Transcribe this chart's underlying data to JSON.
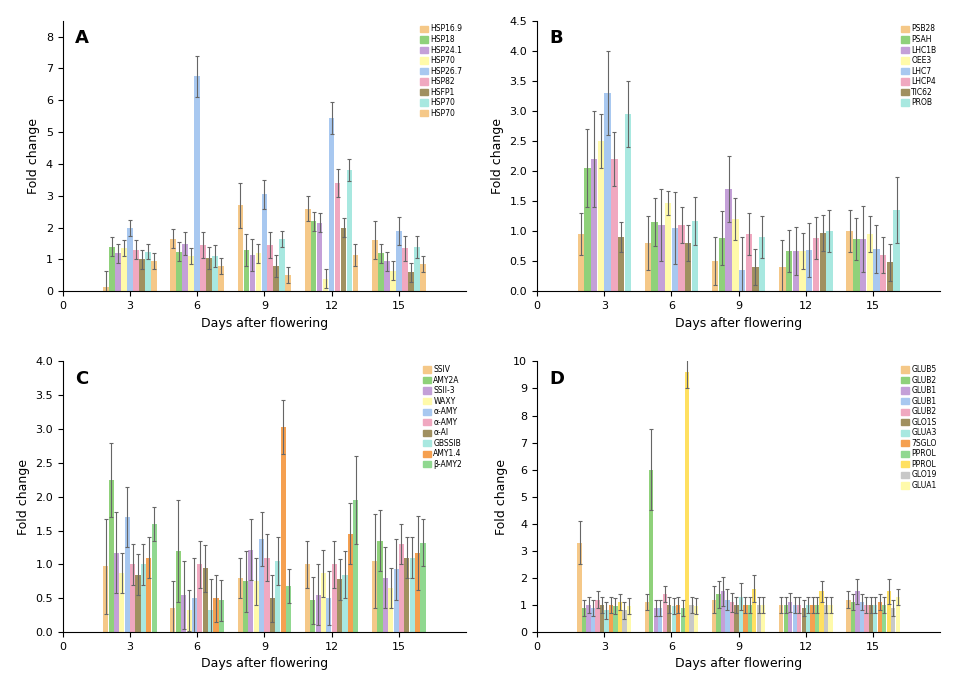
{
  "x_positions": [
    3,
    6,
    9,
    12,
    15
  ],
  "subplot_A": {
    "title": "A",
    "ylabel": "Fold change",
    "xlabel": "Days after flowering",
    "ylim": [
      0,
      8.5
    ],
    "yticks": [
      0,
      1,
      2,
      3,
      4,
      5,
      6,
      7,
      8
    ],
    "legend_labels": [
      "HSP16.9",
      "HSP18",
      "HSP24.1",
      "HSP70",
      "HSP26.7",
      "HSP82",
      "HSFP1",
      "HSP70",
      "HSP70"
    ],
    "colors": [
      "#F5C888",
      "#8FD17A",
      "#C4A0D8",
      "#FFFAAA",
      "#A8C8F0",
      "#F0A8C0",
      "#A09060",
      "#A8E8E0",
      "#F5C888"
    ],
    "values": [
      [
        0.15,
        1.4,
        1.2,
        1.35,
        2.0,
        1.3,
        1.0,
        1.25,
        0.95
      ],
      [
        1.65,
        1.25,
        1.5,
        1.1,
        6.75,
        1.45,
        1.05,
        1.1,
        0.8
      ],
      [
        2.7,
        1.3,
        1.15,
        1.2,
        3.05,
        1.45,
        0.8,
        1.65,
        0.5
      ],
      [
        2.6,
        2.2,
        2.15,
        0.4,
        5.45,
        3.4,
        2.0,
        3.8,
        1.15
      ],
      [
        1.6,
        1.2,
        0.95,
        0.65,
        1.9,
        1.35,
        0.6,
        1.4,
        0.87
      ]
    ],
    "errors": [
      [
        0.5,
        0.3,
        0.3,
        0.25,
        0.25,
        0.3,
        0.3,
        0.25,
        0.25
      ],
      [
        0.3,
        0.3,
        0.35,
        0.25,
        0.65,
        0.4,
        0.35,
        0.35,
        0.25
      ],
      [
        0.7,
        0.5,
        0.5,
        0.3,
        0.45,
        0.4,
        0.35,
        0.25,
        0.25
      ],
      [
        0.4,
        0.3,
        0.3,
        0.3,
        0.5,
        0.45,
        0.3,
        0.35,
        0.35
      ],
      [
        0.6,
        0.3,
        0.3,
        0.3,
        0.45,
        0.4,
        0.3,
        0.35,
        0.25
      ]
    ]
  },
  "subplot_B": {
    "title": "B",
    "ylabel": "Fold change",
    "xlabel": "Days after flowering",
    "ylim": [
      0,
      4.5
    ],
    "yticks": [
      0.0,
      0.5,
      1.0,
      1.5,
      2.0,
      2.5,
      3.0,
      3.5,
      4.0,
      4.5
    ],
    "legend_labels": [
      "PSB28",
      "PSAH",
      "LHC1B",
      "OEE3",
      "LHC7",
      "LHCP4",
      "TIC62",
      "PROB"
    ],
    "colors": [
      "#F5C888",
      "#8FD17A",
      "#C4A0D8",
      "#FFFAAA",
      "#A8C8F0",
      "#F0A8C0",
      "#A09060",
      "#A8E8E0"
    ],
    "values": [
      [
        0.95,
        2.05,
        2.2,
        2.5,
        3.3,
        2.2,
        0.9,
        2.95
      ],
      [
        0.8,
        1.15,
        1.1,
        1.47,
        1.05,
        1.1,
        0.8,
        1.17
      ],
      [
        0.5,
        0.88,
        1.7,
        1.2,
        0.35,
        0.96,
        0.4,
        0.9
      ],
      [
        0.4,
        0.67,
        0.67,
        0.67,
        0.68,
        0.88,
        0.97,
        1.0
      ],
      [
        1.0,
        0.87,
        0.87,
        0.95,
        0.7,
        0.6,
        0.48,
        1.35
      ]
    ],
    "errors": [
      [
        0.35,
        0.65,
        0.8,
        0.45,
        0.7,
        0.45,
        0.25,
        0.55
      ],
      [
        0.45,
        0.4,
        0.6,
        0.2,
        0.6,
        0.3,
        0.3,
        0.4
      ],
      [
        0.4,
        0.45,
        0.55,
        0.35,
        0.55,
        0.35,
        0.3,
        0.35
      ],
      [
        0.45,
        0.35,
        0.4,
        0.3,
        0.45,
        0.35,
        0.3,
        0.35
      ],
      [
        0.35,
        0.35,
        0.55,
        0.3,
        0.4,
        0.3,
        0.3,
        0.55
      ]
    ]
  },
  "subplot_C": {
    "title": "C",
    "ylabel": "Fold change",
    "xlabel": "Days after flowering",
    "ylim": [
      0,
      4.0
    ],
    "yticks": [
      0.0,
      0.5,
      1.0,
      1.5,
      2.0,
      2.5,
      3.0,
      3.5,
      4.0
    ],
    "legend_labels": [
      "SSIV",
      "AMY2A",
      "SSII-3",
      "WAXY",
      "α-AMY",
      "α-AMY",
      "α-AI",
      "GBSSIB",
      "AMY1.4",
      "β-AMY2"
    ],
    "colors": [
      "#F5C888",
      "#8FD17A",
      "#C4A0D8",
      "#FFFAAA",
      "#A8C8F0",
      "#F0A8C0",
      "#A09060",
      "#A8E8E0",
      "#F5A050",
      "#90D890"
    ],
    "values": [
      [
        0.97,
        2.25,
        1.17,
        0.87,
        1.7,
        1.0,
        0.85,
        1.0,
        1.1,
        1.6
      ],
      [
        0.35,
        1.2,
        0.55,
        0.32,
        0.5,
        1.0,
        0.94,
        0.33,
        0.5,
        0.47
      ],
      [
        0.8,
        0.75,
        1.22,
        0.75,
        1.38,
        1.1,
        0.5,
        1.05,
        3.03,
        0.68
      ],
      [
        1.0,
        0.47,
        0.55,
        0.87,
        0.5,
        1.0,
        0.78,
        0.85,
        1.45,
        1.95
      ],
      [
        1.05,
        1.35,
        0.8,
        0.65,
        0.93,
        1.3,
        1.1,
        1.1,
        1.17,
        1.32
      ]
    ],
    "errors": [
      [
        0.7,
        0.55,
        0.6,
        0.3,
        0.45,
        0.3,
        0.3,
        0.3,
        0.3,
        0.25
      ],
      [
        0.4,
        0.75,
        0.5,
        0.3,
        0.6,
        0.35,
        0.35,
        0.45,
        0.35,
        0.3
      ],
      [
        0.3,
        0.45,
        0.45,
        0.35,
        0.4,
        0.35,
        0.35,
        0.35,
        0.4,
        0.25
      ],
      [
        0.35,
        0.35,
        0.45,
        0.35,
        0.4,
        0.35,
        0.3,
        0.35,
        0.45,
        0.65
      ],
      [
        0.7,
        0.45,
        0.45,
        0.3,
        0.45,
        0.3,
        0.3,
        0.3,
        0.55,
        0.35
      ]
    ]
  },
  "subplot_D": {
    "title": "D",
    "ylabel": "Fold change",
    "xlabel": "Days after flowering",
    "ylim": [
      0,
      10
    ],
    "yticks": [
      0,
      1,
      2,
      3,
      4,
      5,
      6,
      7,
      8,
      9,
      10
    ],
    "legend_labels": [
      "GLUB5",
      "GLUB2",
      "GLUB1",
      "GLUB1",
      "GLUB2",
      "GLO1S",
      "GLUA3",
      "7SGLO",
      "PPROL",
      "PPROL",
      "GLO19",
      "GLUA1"
    ],
    "colors": [
      "#F5C888",
      "#8FD17A",
      "#C4A0D8",
      "#A8C8F0",
      "#F0A8C0",
      "#A09060",
      "#A8E8E0",
      "#F5A050",
      "#90D890",
      "#FFE060",
      "#C8C8C8",
      "#FFFAAA"
    ],
    "values": [
      [
        3.3,
        0.9,
        1.0,
        0.9,
        1.2,
        1.0,
        0.8,
        1.0,
        0.95,
        1.1,
        0.8,
        0.95
      ],
      [
        1.1,
        6.0,
        0.9,
        0.9,
        1.4,
        1.0,
        0.95,
        1.0,
        0.9,
        9.6,
        1.0,
        0.95
      ],
      [
        1.2,
        1.4,
        1.5,
        1.2,
        1.1,
        1.0,
        1.3,
        1.0,
        1.0,
        1.6,
        1.0,
        1.0
      ],
      [
        1.0,
        1.0,
        1.1,
        1.0,
        1.0,
        0.9,
        1.0,
        1.0,
        1.0,
        1.5,
        1.0,
        1.0
      ],
      [
        1.2,
        1.1,
        1.5,
        1.1,
        1.0,
        1.0,
        1.0,
        1.1,
        1.0,
        1.5,
        0.9,
        1.3
      ]
    ],
    "errors": [
      [
        0.8,
        0.3,
        0.3,
        0.3,
        0.3,
        0.3,
        0.3,
        0.3,
        0.3,
        0.3,
        0.3,
        0.3
      ],
      [
        0.3,
        1.5,
        0.3,
        0.3,
        0.3,
        0.3,
        0.3,
        0.3,
        0.3,
        0.6,
        0.3,
        0.3
      ],
      [
        0.5,
        0.5,
        0.55,
        0.4,
        0.35,
        0.3,
        0.5,
        0.3,
        0.3,
        0.5,
        0.3,
        0.3
      ],
      [
        0.3,
        0.3,
        0.35,
        0.3,
        0.3,
        0.3,
        0.3,
        0.3,
        0.3,
        0.4,
        0.3,
        0.3
      ],
      [
        0.3,
        0.3,
        0.45,
        0.3,
        0.3,
        0.3,
        0.3,
        0.3,
        0.3,
        0.45,
        0.3,
        0.3
      ]
    ]
  }
}
